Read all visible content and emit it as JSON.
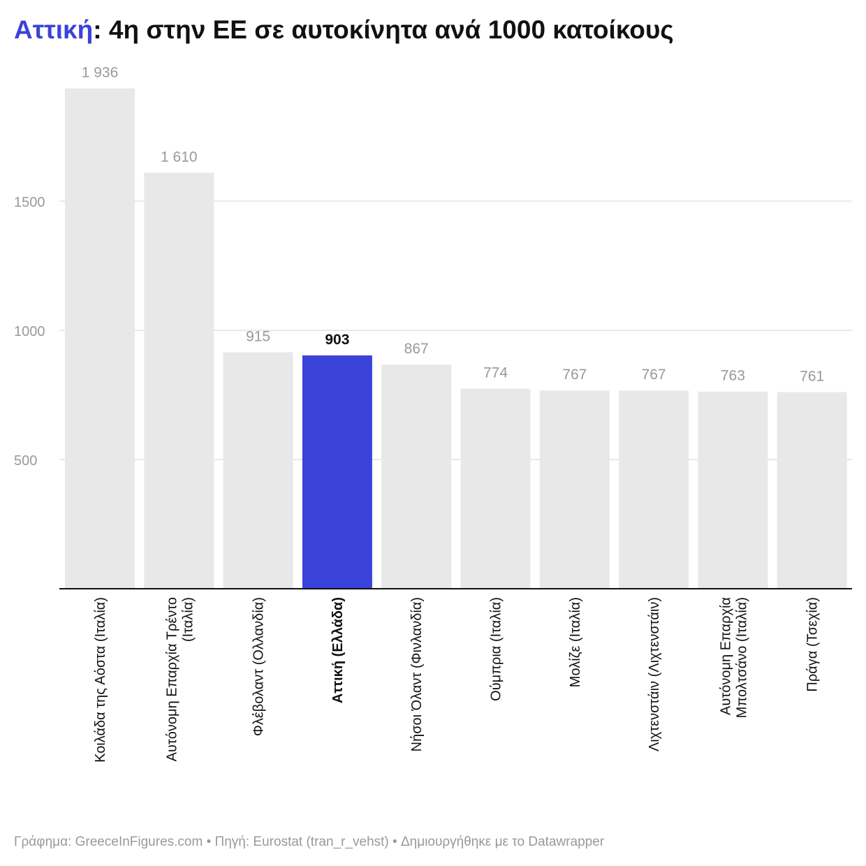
{
  "title": {
    "highlight": "Αττική",
    "rest": ": 4η στην ΕΕ σε αυτοκίνητα ανά 1000 κατοίκους"
  },
  "footer": "Γράφημα: GreeceInFigures.com • Πηγή: Eurostat (tran_r_vehst) • Δημιουργήθηκε με το Datawrapper",
  "colors": {
    "highlight": "#3a43d9",
    "bar": "#e8e8e8",
    "grid": "#e2e2e2",
    "axis": "#111111",
    "label": "#999999"
  },
  "chart_data": {
    "type": "bar",
    "title": "Αττική: 4η στην ΕΕ σε αυτοκίνητα ανά 1000 κατοίκους",
    "categories": [
      [
        "Κοιλάδα της Αόστα (Ιταλία)"
      ],
      [
        "Αυτόνομη Επαρχία Τρέντο",
        "(Ιταλία)"
      ],
      [
        "Φλέβολαντ (Ολλανδία)"
      ],
      [
        "Αττική (Ελλάδα)"
      ],
      [
        "Νήσοι Όλαντ (Φινλανδία)"
      ],
      [
        "Ούμπρια (Ιταλία)"
      ],
      [
        "Μολίζε (Ιταλία)"
      ],
      [
        "Λιχτενστάιν (Λιχτενστάιν)"
      ],
      [
        "Αυτόνομη Επαρχία",
        "Μπολτσάνο (Ιταλία)"
      ],
      [
        "Πράγα (Τσεχία)"
      ]
    ],
    "values": [
      1936,
      1610,
      915,
      903,
      867,
      774,
      767,
      767,
      763,
      761
    ],
    "value_labels": [
      "1 936",
      "1 610",
      "915",
      "903",
      "867",
      "774",
      "767",
      "767",
      "763",
      "761"
    ],
    "highlighted_index": 3,
    "yticks": [
      500,
      1000,
      1500
    ],
    "ylim": [
      0,
      1936
    ],
    "grid": true,
    "xlabel": "",
    "ylabel": ""
  }
}
